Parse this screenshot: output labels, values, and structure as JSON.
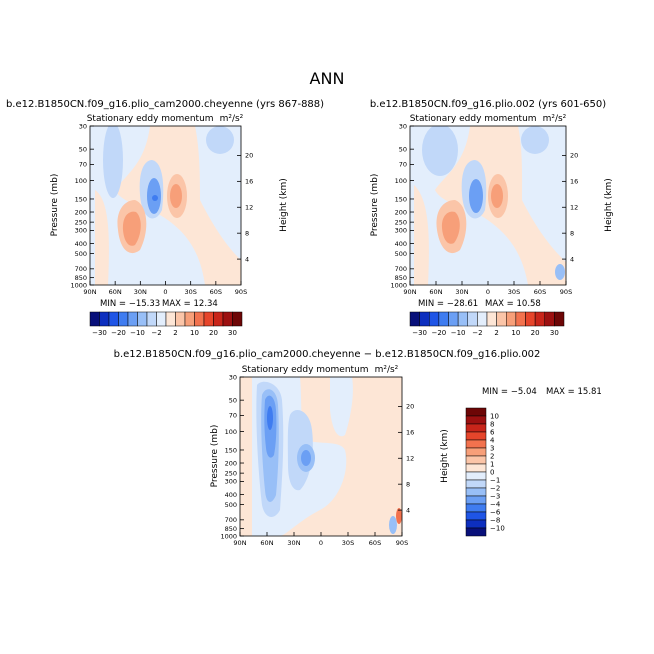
{
  "page": {
    "title": "ANN",
    "colors": {
      "background": "#ffffff",
      "axis": "#000000"
    }
  },
  "chart_data": [
    {
      "type": "contour",
      "case": "b.e12.B1850CN.f09_g16.plio_cam2000.cheyenne (yrs 867-888)",
      "title": "Stationary eddy momentum",
      "units": "m²/s²",
      "ylabel": "Pressure (mb)",
      "ylabel_right": "Height (km)",
      "x_ticks": [
        "90N",
        "60N",
        "30N",
        "0",
        "30S",
        "60S",
        "90S"
      ],
      "y_ticks": [
        "30",
        "50",
        "70",
        "100",
        "150",
        "200",
        "250",
        "300",
        "400",
        "500",
        "700",
        "850",
        "1000"
      ],
      "y_ticks_right": [
        "20",
        "16",
        "12",
        "8",
        "4"
      ],
      "min_label": "MIN = −15.33",
      "max_label": "MAX = 12.34",
      "features": [
        {
          "name": "negative core near 15N 150mb",
          "lat": 15,
          "p": 150,
          "value": -12
        },
        {
          "name": "positive core near 5S 150mb",
          "lat": -5,
          "p": 150,
          "value": 8
        },
        {
          "name": "positive lobe near 30N 250mb",
          "lat": 30,
          "p": 250,
          "value": 6
        }
      ]
    },
    {
      "type": "contour",
      "case": "b.e12.B1850CN.f09_g16.plio.002 (yrs 601-650)",
      "title": "Stationary eddy momentum",
      "units": "m²/s²",
      "ylabel": "Pressure (mb)",
      "ylabel_right": "Height (km)",
      "x_ticks": [
        "90N",
        "60N",
        "30N",
        "0",
        "30S",
        "60S",
        "90S"
      ],
      "y_ticks": [
        "30",
        "50",
        "70",
        "100",
        "150",
        "200",
        "250",
        "300",
        "400",
        "500",
        "700",
        "850",
        "1000"
      ],
      "y_ticks_right": [
        "20",
        "16",
        "12",
        "8",
        "4"
      ],
      "min_label": "MIN = −28.61",
      "max_label": "MAX = 10.58",
      "features": [
        {
          "name": "negative core near 15N 150mb",
          "lat": 15,
          "p": 150,
          "value": -12
        },
        {
          "name": "positive core near 5S 150mb",
          "lat": -5,
          "p": 150,
          "value": 7
        },
        {
          "name": "positive lobe near 30N 250mb",
          "lat": 30,
          "p": 250,
          "value": 6
        }
      ]
    },
    {
      "type": "contour",
      "case": "b.e12.B1850CN.f09_g16.plio_cam2000.cheyenne − b.e12.B1850CN.f09_g16.plio.002",
      "title": "Stationary eddy momentum",
      "units": "m²/s²",
      "ylabel": "Pressure (mb)",
      "ylabel_right": "Height (km)",
      "x_ticks": [
        "90N",
        "60N",
        "30N",
        "0",
        "30S",
        "60S",
        "90S"
      ],
      "y_ticks": [
        "30",
        "50",
        "70",
        "100",
        "150",
        "200",
        "250",
        "300",
        "400",
        "500",
        "700",
        "850",
        "1000"
      ],
      "y_ticks_right": [
        "20",
        "16",
        "12",
        "8",
        "4"
      ],
      "min_label": "MIN = −5.04",
      "max_label": "MAX = 15.81",
      "features": [
        {
          "name": "negative column near 60N",
          "lat": 60,
          "p": 100,
          "value": -6
        },
        {
          "name": "negative core near 20N 175mb",
          "lat": 20,
          "p": 175,
          "value": -4
        },
        {
          "name": "positive near 85S surface",
          "lat": -85,
          "p": 800,
          "value": 6
        }
      ]
    }
  ],
  "colorbars": {
    "panels": {
      "labels": [
        "−30",
        "−20",
        "−10",
        "−2",
        "2",
        "10",
        "20",
        "30"
      ],
      "colors": [
        "#08107a",
        "#0d2fbf",
        "#1f55e6",
        "#3f7cf0",
        "#6b9ff4",
        "#98bff7",
        "#c1d8f9",
        "#e3eefc",
        "#fde6d6",
        "#fbc5a8",
        "#f79f79",
        "#f2724e",
        "#e6452b",
        "#c8251a",
        "#9c1010",
        "#6d0606"
      ]
    },
    "diff": {
      "labels": [
        "10",
        "8",
        "6",
        "4",
        "3",
        "2",
        "1",
        "0",
        "−1",
        "−2",
        "−3",
        "−4",
        "−6",
        "−8",
        "−10"
      ],
      "colors": [
        "#6d0606",
        "#9c1010",
        "#c8251a",
        "#e6452b",
        "#f2724e",
        "#f79f79",
        "#fbc5a8",
        "#fde6d6",
        "#e3eefc",
        "#c1d8f9",
        "#98bff7",
        "#6b9ff4",
        "#3f7cf0",
        "#1f55e6",
        "#0d2fbf",
        "#08107a"
      ]
    }
  }
}
